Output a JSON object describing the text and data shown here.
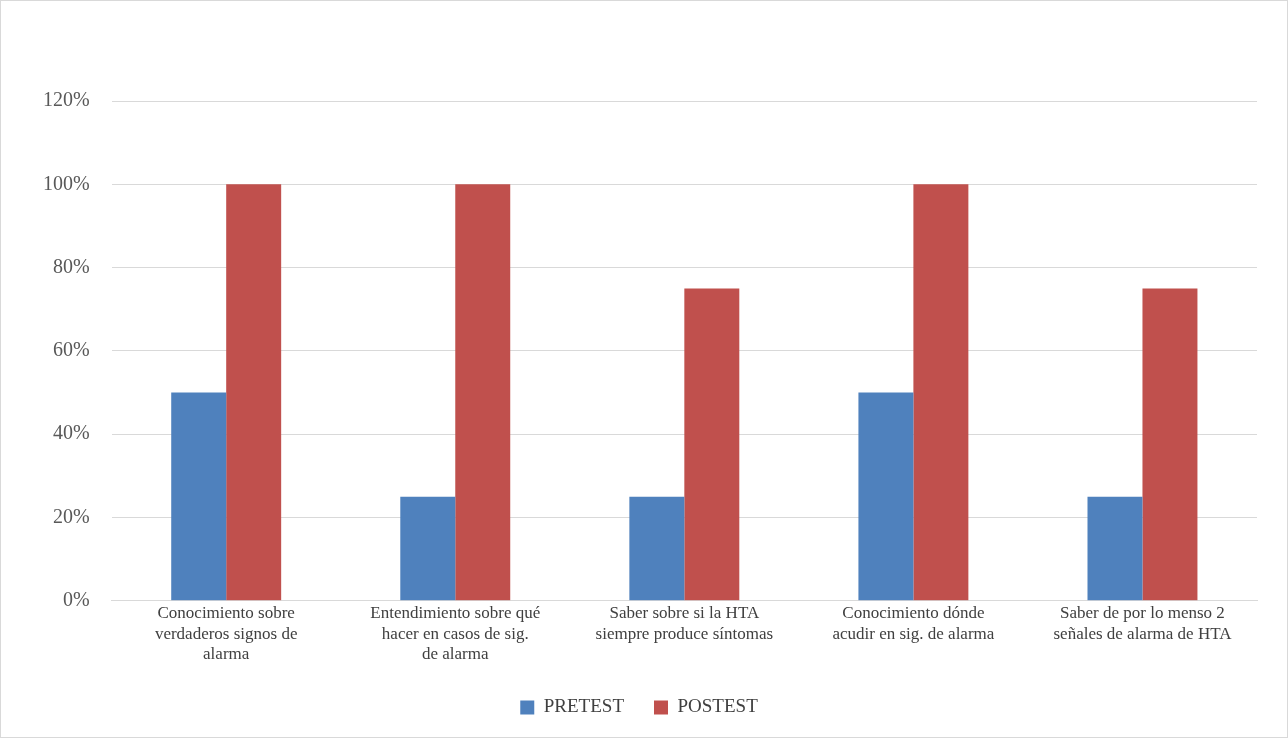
{
  "chart_data": {
    "type": "bar",
    "categories": [
      "Conocimiento sobre verdaderos signos de alarma",
      "Entendimiento sobre qué hacer en casos de sig. de alarma",
      "Saber sobre si la HTA siempre produce síntomas",
      "Conocimiento dónde acudir en sig. de alarma",
      "Saber de por lo menso 2 señales de alarma de HTA"
    ],
    "series": [
      {
        "name": "PRETEST",
        "color": "#4f81bd",
        "values": [
          50,
          25,
          25,
          50,
          25
        ]
      },
      {
        "name": "POSTEST",
        "color": "#c0504d",
        "values": [
          100,
          100,
          75,
          100,
          75
        ]
      }
    ],
    "ylim": [
      0,
      120
    ],
    "yticks": [
      {
        "value": 0,
        "label": "0%"
      },
      {
        "value": 20,
        "label": "20%"
      },
      {
        "value": 40,
        "label": "40%"
      },
      {
        "value": 60,
        "label": "60%"
      },
      {
        "value": 80,
        "label": "80%"
      },
      {
        "value": 100,
        "label": "100%"
      },
      {
        "value": 120,
        "label": "120%"
      }
    ],
    "grid": "y",
    "legend": "bottom"
  }
}
